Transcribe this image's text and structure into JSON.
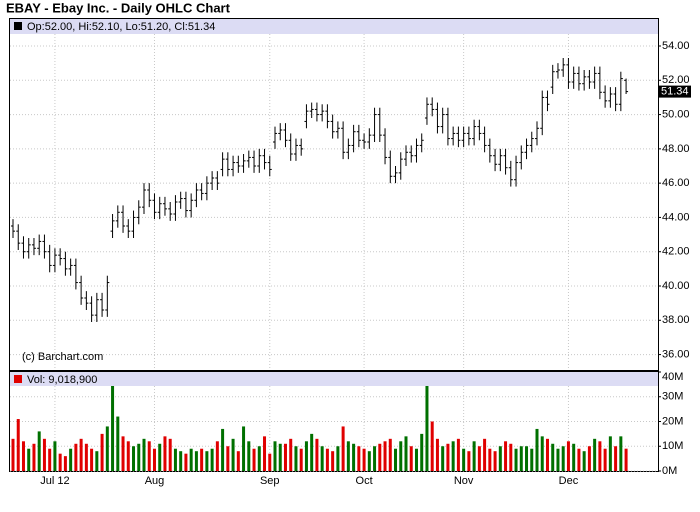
{
  "chart_data": [
    {
      "type": "ohlc",
      "title": "EBAY - Ebay Inc. - Daily OHLC Chart",
      "legend_text": "Op:52.00, Hi:52.10, Lo:51.20, Cl:51.34",
      "credit": "(c) Barchart.com",
      "color": "#000000",
      "ylim": [
        35.1,
        54.7
      ],
      "yticks": [
        {
          "value": 36,
          "label": "36.00"
        },
        {
          "value": 38,
          "label": "38.00"
        },
        {
          "value": 40,
          "label": "40.00"
        },
        {
          "value": 42,
          "label": "42.00"
        },
        {
          "value": 44,
          "label": "44.00"
        },
        {
          "value": 46,
          "label": "46.00"
        },
        {
          "value": 48,
          "label": "48.00"
        },
        {
          "value": 50,
          "label": "50.00"
        },
        {
          "value": 52,
          "label": "52.00"
        },
        {
          "value": 54,
          "label": "54.00"
        }
      ],
      "grid": true,
      "open": [
        43.5,
        43.2,
        42.5,
        42.0,
        42.4,
        42.2,
        42.6,
        42.0,
        41.2,
        41.8,
        41.6,
        41.0,
        41.2,
        40.2,
        39.3,
        39.0,
        38.3,
        39.2,
        38.6,
        43.2,
        43.8,
        44.3,
        43.5,
        43.2,
        44.0,
        44.6,
        45.6,
        45.0,
        44.3,
        44.8,
        44.5,
        44.2,
        44.9,
        45.1,
        44.4,
        45.0,
        45.6,
        45.4,
        46.0,
        46.3,
        46.8,
        47.4,
        46.8,
        47.2,
        47.0,
        47.3,
        47.5,
        47.0,
        47.6,
        47.2,
        48.4,
        48.9,
        49.1,
        48.5,
        47.7,
        48.2,
        49.6,
        50.2,
        50.3,
        50.0,
        50.2,
        49.6,
        49.0,
        49.2,
        47.8,
        48.2,
        49.0,
        48.5,
        48.4,
        48.8,
        50.0,
        48.8,
        47.5,
        46.4,
        46.6,
        47.4,
        47.8,
        47.6,
        48.2,
        49.8,
        50.6,
        50.3,
        49.3,
        50.0,
        48.6,
        48.9,
        48.5,
        48.9,
        48.6,
        49.3,
        48.9,
        48.2,
        47.6,
        47.1,
        47.6,
        46.9,
        46.2,
        47.2,
        47.8,
        48.2,
        48.6,
        49.2,
        51.0,
        51.6,
        52.5,
        52.6,
        52.9,
        51.9,
        52.4,
        51.8,
        52.2,
        51.9,
        52.4,
        51.3,
        50.8,
        51.2,
        50.6,
        52.0
      ],
      "high": [
        43.9,
        43.6,
        42.9,
        42.8,
        42.8,
        43.0,
        43.0,
        42.4,
        42.2,
        42.2,
        42.0,
        41.6,
        41.6,
        40.6,
        39.7,
        39.4,
        39.6,
        39.6,
        40.6,
        44.2,
        44.7,
        44.7,
        43.9,
        44.4,
        45.0,
        46.0,
        46.0,
        45.4,
        45.2,
        45.2,
        44.9,
        45.3,
        45.5,
        45.5,
        45.4,
        46.0,
        46.0,
        46.4,
        46.7,
        46.7,
        47.8,
        47.8,
        47.6,
        47.6,
        47.7,
        47.9,
        47.9,
        48.0,
        48.0,
        47.6,
        49.3,
        49.5,
        49.5,
        48.9,
        48.6,
        48.6,
        50.6,
        50.7,
        50.7,
        50.6,
        50.6,
        50.0,
        49.6,
        49.6,
        48.6,
        49.4,
        49.4,
        48.9,
        49.2,
        50.4,
        50.4,
        49.2,
        47.9,
        47.0,
        47.8,
        48.2,
        48.2,
        48.6,
        48.9,
        51.0,
        51.0,
        50.7,
        50.4,
        50.4,
        49.3,
        49.3,
        49.3,
        49.3,
        49.7,
        49.7,
        49.3,
        48.6,
        48.0,
        48.0,
        48.0,
        47.3,
        47.6,
        48.2,
        48.6,
        49.0,
        49.6,
        51.4,
        51.4,
        52.9,
        53.0,
        53.3,
        53.3,
        52.8,
        52.8,
        52.6,
        52.6,
        52.8,
        52.8,
        51.7,
        51.6,
        51.6,
        52.5,
        52.1
      ],
      "low": [
        42.8,
        42.1,
        41.6,
        41.6,
        41.8,
        41.8,
        41.6,
        40.8,
        40.8,
        41.2,
        40.6,
        40.6,
        39.8,
        38.9,
        38.6,
        37.9,
        37.9,
        38.2,
        38.2,
        42.8,
        43.4,
        43.1,
        42.8,
        42.8,
        43.6,
        44.2,
        44.6,
        43.9,
        43.9,
        44.1,
        43.8,
        43.8,
        44.5,
        44.0,
        44.0,
        44.6,
        45.0,
        45.0,
        45.6,
        45.6,
        46.4,
        46.4,
        46.4,
        46.6,
        46.6,
        46.9,
        46.6,
        46.6,
        46.8,
        46.4,
        48.0,
        48.5,
        48.1,
        47.3,
        47.3,
        47.6,
        49.2,
        49.8,
        49.6,
        49.6,
        49.2,
        48.6,
        48.6,
        47.4,
        47.4,
        47.8,
        48.1,
        48.0,
        48.0,
        48.4,
        48.4,
        47.1,
        46.0,
        46.0,
        46.2,
        47.0,
        47.2,
        47.2,
        47.8,
        49.4,
        49.9,
        48.9,
        48.9,
        48.2,
        48.2,
        48.1,
        48.1,
        48.2,
        48.2,
        48.5,
        47.8,
        47.2,
        46.7,
        46.7,
        46.5,
        45.8,
        45.8,
        46.8,
        47.4,
        47.8,
        48.2,
        48.8,
        50.2,
        51.2,
        52.1,
        52.2,
        51.5,
        51.5,
        51.4,
        51.4,
        51.5,
        51.5,
        50.9,
        50.4,
        50.4,
        50.2,
        50.2,
        51.2
      ],
      "close": [
        43.2,
        42.5,
        42.0,
        42.4,
        42.2,
        42.6,
        42.0,
        41.2,
        41.8,
        41.6,
        41.0,
        41.2,
        40.2,
        39.3,
        39.0,
        38.3,
        39.2,
        38.6,
        40.2,
        43.8,
        44.3,
        43.5,
        43.2,
        44.0,
        44.6,
        45.6,
        45.0,
        44.3,
        44.8,
        44.5,
        44.2,
        44.9,
        45.1,
        44.4,
        45.0,
        45.6,
        45.4,
        46.0,
        46.3,
        46.0,
        47.4,
        46.8,
        47.2,
        47.0,
        47.3,
        47.5,
        47.0,
        47.6,
        47.2,
        46.8,
        48.9,
        49.1,
        48.5,
        47.7,
        48.2,
        48.0,
        50.2,
        50.3,
        50.0,
        50.2,
        49.6,
        49.0,
        49.2,
        47.8,
        48.2,
        49.0,
        48.5,
        48.4,
        48.8,
        50.0,
        48.8,
        47.5,
        46.4,
        46.6,
        47.4,
        47.8,
        47.6,
        48.2,
        48.5,
        50.6,
        50.3,
        49.3,
        50.0,
        48.6,
        48.9,
        48.5,
        48.9,
        48.6,
        49.3,
        48.9,
        48.2,
        47.6,
        47.1,
        47.6,
        46.9,
        46.2,
        47.2,
        47.8,
        48.2,
        48.6,
        49.2,
        51.0,
        50.6,
        52.5,
        52.6,
        52.9,
        51.9,
        52.4,
        51.8,
        52.2,
        51.9,
        52.4,
        51.3,
        50.8,
        51.2,
        50.6,
        52.1,
        51.34
      ]
    },
    {
      "type": "bar",
      "legend_text": "Vol: 9,018,900",
      "colors": {
        "up": "#007000",
        "down": "#e00000"
      },
      "ylim": [
        0,
        40000000
      ],
      "yticks": [
        {
          "value": 0,
          "label": "0M"
        },
        {
          "value": 10000000,
          "label": "10M"
        },
        {
          "value": 20000000,
          "label": "20M"
        },
        {
          "value": 30000000,
          "label": "30M"
        },
        {
          "value": 40000000,
          "label": "40M"
        }
      ],
      "grid": true,
      "categories": [
        null,
        null,
        null,
        null,
        null,
        null,
        null,
        null,
        "Jul 12",
        null,
        null,
        null,
        null,
        null,
        null,
        null,
        null,
        null,
        null,
        null,
        null,
        null,
        null,
        null,
        null,
        null,
        null,
        "Aug",
        null,
        null,
        null,
        null,
        null,
        null,
        null,
        null,
        null,
        null,
        null,
        null,
        null,
        null,
        null,
        null,
        null,
        null,
        null,
        null,
        null,
        "Sep",
        null,
        null,
        null,
        null,
        null,
        null,
        null,
        null,
        null,
        null,
        null,
        null,
        null,
        null,
        null,
        null,
        null,
        "Oct",
        null,
        null,
        null,
        null,
        null,
        null,
        null,
        null,
        null,
        null,
        null,
        null,
        null,
        null,
        null,
        null,
        null,
        null,
        "Nov",
        null,
        null,
        null,
        null,
        null,
        null,
        null,
        null,
        null,
        null,
        null,
        null,
        null,
        null,
        null,
        null,
        null,
        null,
        null,
        "Dec",
        null,
        null,
        null,
        null,
        null,
        null,
        null,
        null,
        null,
        null,
        null
      ],
      "values": [
        13000000,
        21000000,
        12000000,
        9000000,
        11000000,
        16000000,
        13000000,
        9000000,
        12000000,
        7000000,
        6000000,
        9000000,
        11000000,
        13000000,
        11000000,
        9000000,
        8000000,
        15000000,
        18000000,
        35000000,
        22000000,
        14000000,
        12000000,
        10000000,
        11000000,
        13000000,
        12000000,
        9000000,
        11000000,
        14000000,
        13000000,
        9000000,
        8000000,
        7000000,
        9000000,
        8000000,
        9000000,
        8000000,
        9000000,
        12000000,
        17000000,
        10000000,
        13000000,
        8000000,
        18000000,
        12000000,
        9000000,
        10000000,
        14000000,
        7000000,
        12000000,
        11000000,
        11000000,
        13000000,
        10000000,
        9000000,
        12000000,
        15000000,
        13000000,
        10000000,
        9000000,
        8000000,
        10000000,
        18000000,
        12000000,
        11000000,
        10000000,
        9000000,
        8000000,
        10000000,
        11000000,
        12000000,
        13000000,
        9000000,
        12000000,
        14000000,
        10000000,
        9000000,
        15000000,
        35000000,
        20000000,
        13000000,
        10000000,
        11000000,
        12000000,
        13000000,
        9000000,
        8000000,
        12000000,
        10000000,
        13000000,
        9000000,
        8000000,
        10000000,
        12000000,
        11000000,
        9000000,
        10000000,
        10000000,
        9000000,
        17000000,
        14000000,
        13000000,
        11000000,
        9000000,
        10000000,
        12000000,
        11000000,
        9000000,
        8000000,
        10000000,
        13000000,
        12000000,
        9000000,
        14000000,
        10000000,
        14000000,
        9018900
      ]
    }
  ]
}
